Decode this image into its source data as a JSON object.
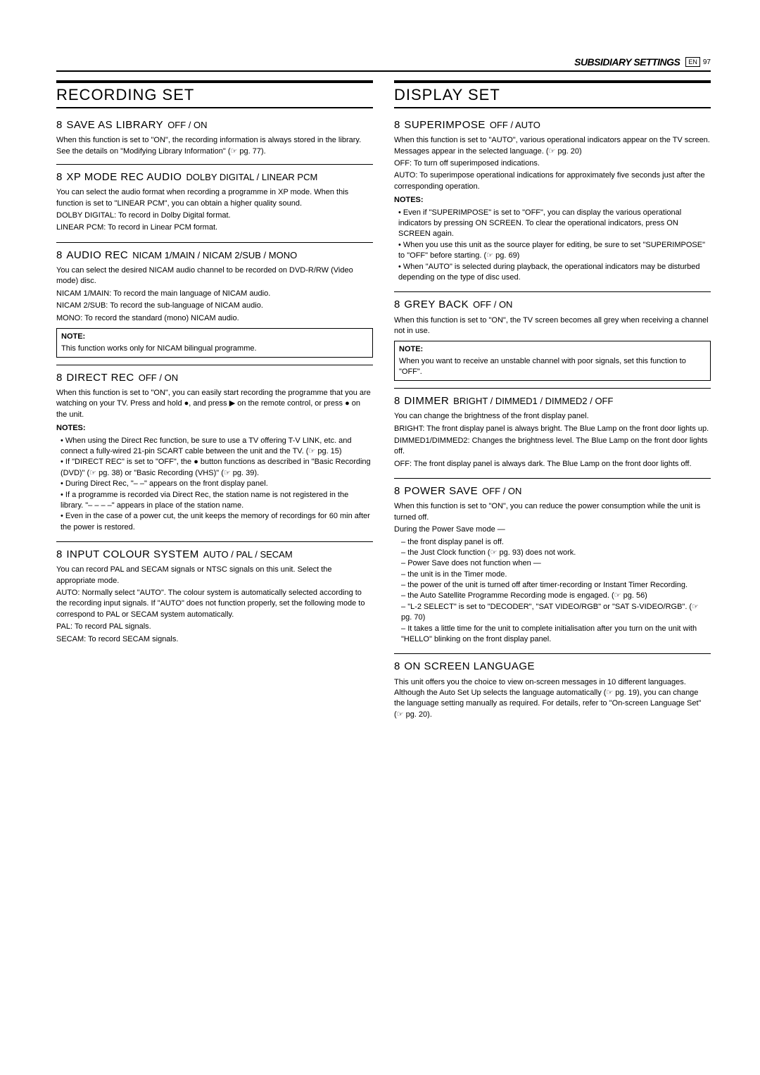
{
  "header": {
    "title": "SUBSIDIARY SETTINGS",
    "page_en": "EN",
    "page_num": "97"
  },
  "left": {
    "section": "RECORDING SET",
    "items": [
      {
        "num": "8",
        "name": "SAVE AS LIBRARY",
        "opts": "OFF / ON",
        "body": "When this function is set to \"ON\", the recording information is always stored in the library. See the details on \"Modifying Library Information\" (☞ pg. 77)."
      },
      {
        "num": "8",
        "name": "XP MODE REC AUDIO",
        "opts": "DOLBY DIGITAL / LINEAR PCM",
        "body": "You can select the audio format when recording a programme in XP mode. When this function is set to \"LINEAR PCM\", you can obtain a higher quality sound.",
        "opts_list": [
          {
            "k": "DOLBY DIGITAL",
            "v": "To record in Dolby Digital format."
          },
          {
            "k": "LINEAR PCM",
            "v": "To record in Linear PCM format."
          }
        ]
      },
      {
        "num": "8",
        "name": "AUDIO REC",
        "opts": "NICAM 1/MAIN / NICAM 2/SUB / MONO",
        "body": "You can select the desired NICAM audio channel to be recorded on DVD-R/RW (Video mode) disc.",
        "opts_list": [
          {
            "k": "NICAM 1/MAIN",
            "v": "To record the main language of NICAM audio."
          },
          {
            "k": "NICAM 2/SUB",
            "v": "To record the sub-language of NICAM audio."
          },
          {
            "k": "MONO",
            "v": "To record the standard (mono) NICAM audio."
          }
        ],
        "note_box": {
          "title": "NOTE:",
          "text": "This function works only for NICAM bilingual programme."
        }
      },
      {
        "num": "8",
        "name": "DIRECT REC",
        "opts": "OFF / ON",
        "body": "When this function is set to \"ON\", you can easily start recording the programme that you are watching on your TV. Press and hold ●, and press ▶ on the remote control, or press ● on the unit.",
        "notes": [
          "When using the Direct Rec function, be sure to use a TV offering T-V LINK, etc. and connect a fully-wired 21-pin SCART cable between the unit and the TV. (☞ pg. 15)",
          "If \"DIRECT REC\" is set to \"OFF\", the ● button functions as described in \"Basic Recording (DVD)\" (☞ pg. 38) or \"Basic Recording (VHS)\" (☞ pg. 39).",
          "During Direct Rec, \"– –\" appears on the front display panel.",
          "If a programme is recorded via Direct Rec, the station name is not registered in the library. \"– – – –\" appears in place of the station name.",
          "Even in the case of a power cut, the unit keeps the memory of recordings for 60 min after the power is restored."
        ]
      },
      {
        "num": "8",
        "name": "INPUT COLOUR SYSTEM",
        "opts": "AUTO / PAL / SECAM",
        "body": "You can record PAL and SECAM signals or NTSC signals on this unit. Select the appropriate mode.",
        "opts_list": [
          {
            "k": "AUTO",
            "v": "Normally select \"AUTO\". The colour system is automatically selected according to the recording input signals. If \"AUTO\" does not function properly, set the following mode to correspond to PAL or SECAM system automatically."
          },
          {
            "k": "PAL",
            "v": "To record PAL signals."
          },
          {
            "k": "SECAM",
            "v": "To record SECAM signals."
          }
        ]
      }
    ]
  },
  "right": {
    "section": "DISPLAY SET",
    "items": [
      {
        "num": "8",
        "name": "SUPERIMPOSE",
        "opts": "OFF / AUTO",
        "body": "When this function is set to \"AUTO\", various operational indicators appear on the TV screen. Messages appear in the selected language. (☞ pg. 20)",
        "opts_list": [
          {
            "k": "OFF",
            "v": "To turn off superimposed indications."
          },
          {
            "k": "AUTO",
            "v": "To superimpose operational indications for approximately five seconds just after the corresponding operation."
          }
        ],
        "notes": [
          "Even if \"SUPERIMPOSE\" is set to \"OFF\", you can display the various operational indicators by pressing ON SCREEN. To clear the operational indicators, press ON SCREEN again.",
          "When you use this unit as the source player for editing, be sure to set \"SUPERIMPOSE\" to \"OFF\" before starting. (☞ pg. 69)",
          "When \"AUTO\" is selected during playback, the operational indicators may be disturbed depending on the type of disc used."
        ]
      },
      {
        "num": "8",
        "name": "GREY BACK",
        "opts": "OFF / ON",
        "body": "When this function is set to \"ON\", the TV screen becomes all grey when receiving a channel not in use.",
        "note_box": {
          "title": "NOTE:",
          "text": "When you want to receive an unstable channel with poor signals, set this function to \"OFF\"."
        }
      },
      {
        "num": "8",
        "name": "DIMMER",
        "opts": "BRIGHT / DIMMED1 / DIMMED2 / OFF",
        "body": "You can change the brightness of the front display panel.",
        "opts_list": [
          {
            "k": "BRIGHT",
            "v": "The front display panel is always bright. The Blue Lamp on the front door lights up."
          },
          {
            "k": "DIMMED1/DIMMED2",
            "v": "Changes the brightness level. The Blue Lamp on the front door lights off."
          },
          {
            "k": "OFF",
            "v": "The front display panel is always dark. The Blue Lamp on the front door lights off."
          }
        ]
      },
      {
        "num": "8",
        "name": "POWER SAVE",
        "opts": "OFF / ON",
        "body": "When this function is set to \"ON\", you can reduce the power consumption while the unit is turned off.",
        "note_bullets_title": "During the Power Save mode —",
        "note_bullets": [
          "the front display panel is off.",
          "the Just Clock function (☞ pg. 93) does not work.",
          "Power Save does not function when —",
          "the unit is in the Timer mode.",
          "the power of the unit is turned off after timer-recording or Instant Timer Recording.",
          "the Auto Satellite Programme Recording mode is engaged. (☞ pg. 56)",
          "\"L-2 SELECT\" is set to \"DECODER\", \"SAT VIDEO/RGB\" or \"SAT S-VIDEO/RGB\". (☞ pg. 70)",
          "It takes a little time for the unit to complete initialisation after you turn on the unit with \"HELLO\" blinking on the front display panel."
        ]
      },
      {
        "num": "8",
        "name": "ON SCREEN LANGUAGE",
        "opts": "",
        "body": "This unit offers you the choice to view on-screen messages in 10 different languages. Although the Auto Set Up selects the language automatically (☞ pg. 19), you can change the language setting manually as required.\nFor details, refer to \"On-screen Language Set\" (☞ pg. 20)."
      }
    ]
  }
}
